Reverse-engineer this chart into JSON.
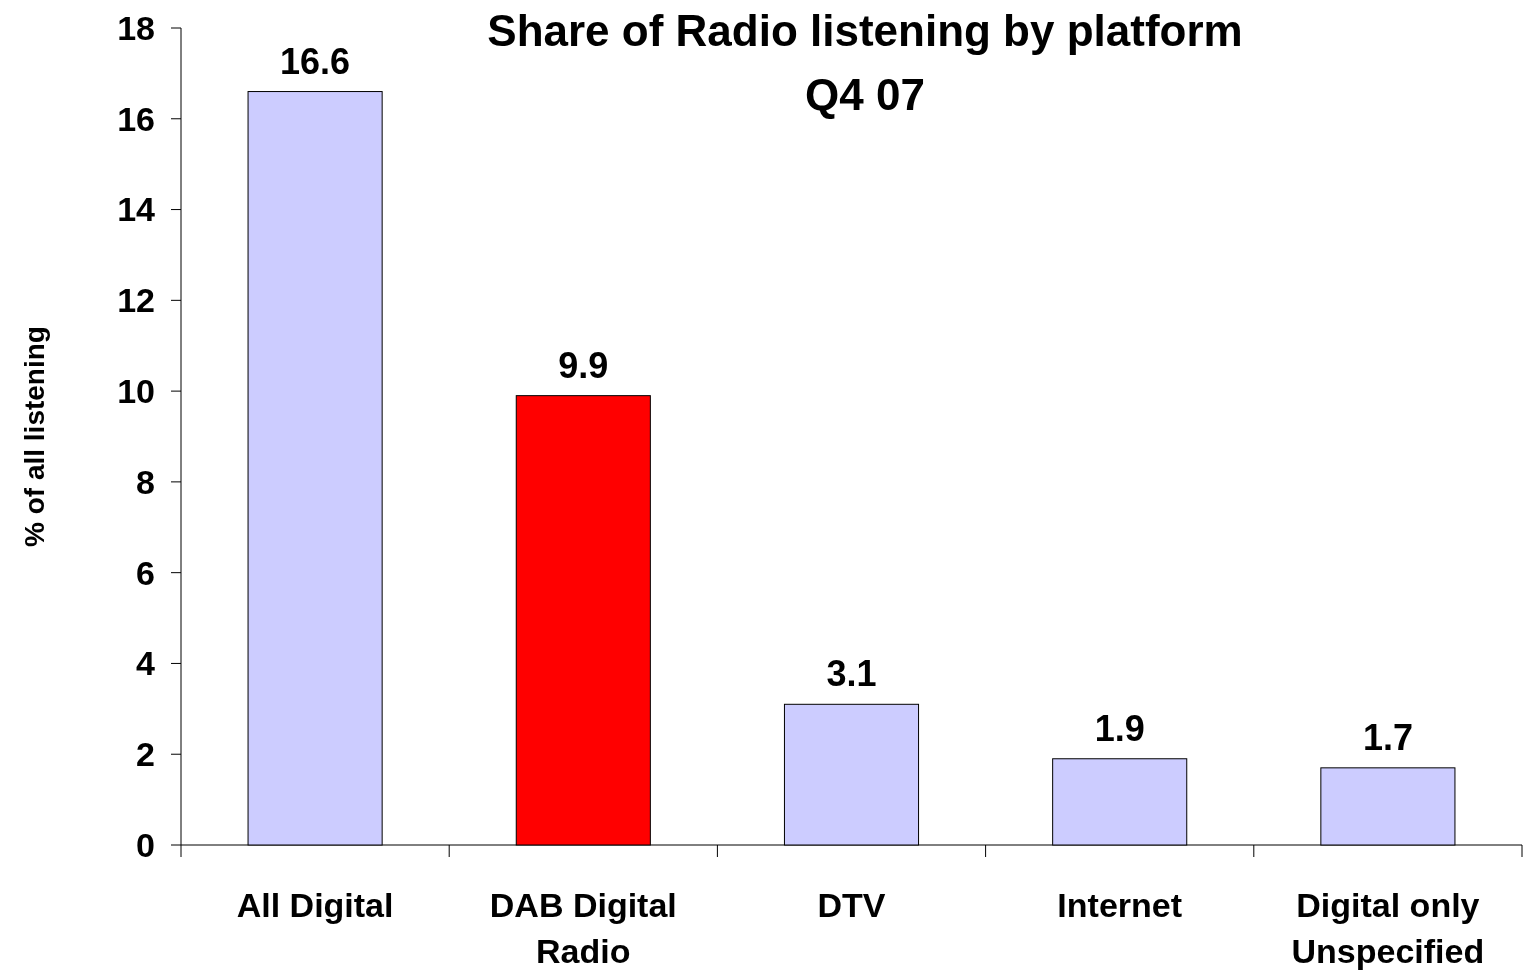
{
  "chart_data": {
    "type": "bar",
    "title": "Share of Radio listening by platform\nQ4 07",
    "ylabel": "% of all listening",
    "categories": [
      "All Digital",
      "DAB Digital Radio",
      "DTV",
      "Internet",
      "Digital only Unspecified"
    ],
    "values": [
      16.6,
      9.9,
      3.1,
      1.9,
      1.7
    ],
    "colors": [
      "#ccccff",
      "#ff0000",
      "#ccccff",
      "#ccccff",
      "#ccccff"
    ],
    "ylim": [
      0,
      18
    ],
    "yticks": [
      0,
      2,
      4,
      6,
      8,
      10,
      12,
      14,
      16,
      18
    ],
    "data_labels": true
  }
}
